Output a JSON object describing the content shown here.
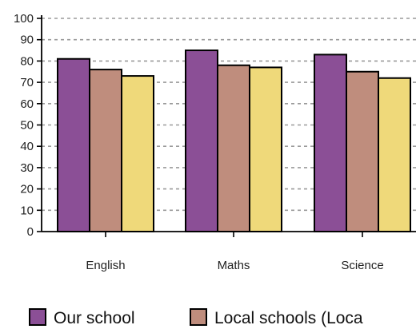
{
  "chart_data": {
    "type": "bar",
    "categories": [
      "English",
      "Maths",
      "Science"
    ],
    "series": [
      {
        "name": "Our school",
        "values": [
          81,
          85,
          83
        ],
        "color": "#8b4f96"
      },
      {
        "name": "Local schools (Loca",
        "values": [
          76,
          78,
          75
        ],
        "color": "#bf8d7d"
      },
      {
        "name": "",
        "values": [
          73,
          77,
          72
        ],
        "color": "#efd97a"
      }
    ],
    "ylim": [
      0,
      100
    ],
    "yticks": [
      0,
      10,
      20,
      30,
      40,
      50,
      60,
      70,
      80,
      90,
      100
    ],
    "grid": true,
    "legend_position": "bottom",
    "title": "",
    "xlabel": "",
    "ylabel": ""
  }
}
